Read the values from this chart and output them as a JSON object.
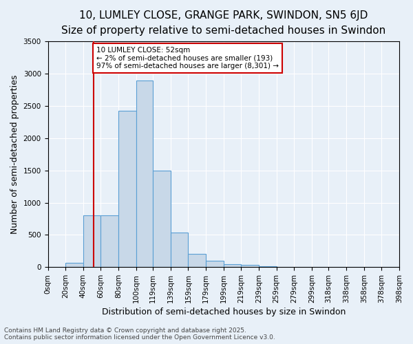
{
  "title_line1": "10, LUMLEY CLOSE, GRANGE PARK, SWINDON, SN5 6JD",
  "title_line2": "Size of property relative to semi-detached houses in Swindon",
  "xlabel": "Distribution of semi-detached houses by size in Swindon",
  "ylabel": "Number of semi-detached properties",
  "bin_labels": [
    "0sqm",
    "20sqm",
    "40sqm",
    "60sqm",
    "80sqm",
    "100sqm",
    "119sqm",
    "139sqm",
    "159sqm",
    "179sqm",
    "199sqm",
    "219sqm",
    "239sqm",
    "259sqm",
    "279sqm",
    "299sqm",
    "318sqm",
    "338sqm",
    "358sqm",
    "378sqm",
    "398sqm"
  ],
  "bin_edges": [
    0,
    20,
    40,
    60,
    80,
    100,
    119,
    139,
    159,
    179,
    199,
    219,
    239,
    259,
    279,
    299,
    318,
    338,
    358,
    378,
    398
  ],
  "bar_heights": [
    0,
    70,
    800,
    800,
    2430,
    2900,
    1500,
    540,
    200,
    100,
    50,
    30,
    10,
    5,
    3,
    2,
    1,
    0,
    0,
    0
  ],
  "bar_color": "#c8d8e8",
  "bar_edge_color": "#5a9fd4",
  "property_size": 52,
  "red_line_color": "#cc0000",
  "annotation_text": "10 LUMLEY CLOSE: 52sqm\n← 2% of semi-detached houses are smaller (193)\n97% of semi-detached houses are larger (8,301) →",
  "annotation_box_color": "white",
  "annotation_box_edge": "#cc0000",
  "ylim": [
    0,
    3500
  ],
  "yticks": [
    0,
    500,
    1000,
    1500,
    2000,
    2500,
    3000,
    3500
  ],
  "footnote": "Contains HM Land Registry data © Crown copyright and database right 2025.\nContains public sector information licensed under the Open Government Licence v3.0.",
  "background_color": "#e8f0f8",
  "plot_background": "#e8f0f8",
  "title_fontsize": 11,
  "subtitle_fontsize": 9.5,
  "axis_label_fontsize": 9,
  "tick_fontsize": 7.5
}
